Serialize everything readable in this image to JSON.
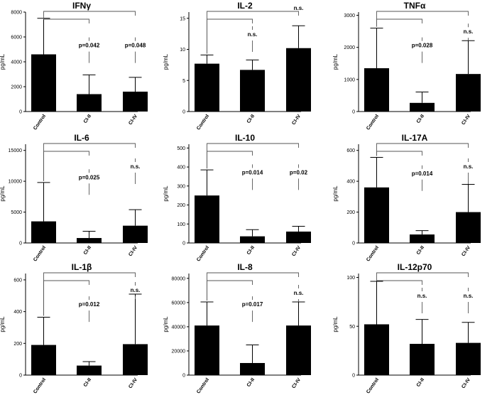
{
  "chart_data": [
    {
      "type": "bar",
      "title": "IFNγ",
      "ylabel": "pg/mL",
      "categories": [
        "Control",
        "CI-II",
        "CI-IV"
      ],
      "values": [
        4600,
        1400,
        1600
      ],
      "errors": [
        2900,
        1550,
        1150
      ],
      "ylim": [
        0,
        8000
      ],
      "yticks": [
        0,
        2000,
        4000,
        6000,
        8000
      ],
      "comparisons": [
        {
          "to": 1,
          "label": "p=0.042"
        },
        {
          "to": 2,
          "label": "p=0.048"
        }
      ]
    },
    {
      "type": "bar",
      "title": "IL-2",
      "ylabel": "pg/mL",
      "categories": [
        "Control",
        "CI-II",
        "CI-IV"
      ],
      "values": [
        7.7,
        6.7,
        10.2
      ],
      "errors": [
        1.4,
        1.6,
        3.6
      ],
      "ylim": [
        0,
        16
      ],
      "yticks": [
        0,
        5,
        10,
        15
      ],
      "comparisons": [
        {
          "to": 1,
          "label": "n.s."
        },
        {
          "to": 2,
          "label": "n.s."
        }
      ]
    },
    {
      "type": "bar",
      "title": "TNFα",
      "ylabel": "pg/mL",
      "categories": [
        "Control",
        "CI-II",
        "CI-IV"
      ],
      "values": [
        1350,
        270,
        1170
      ],
      "errors": [
        1250,
        340,
        1040
      ],
      "ylim": [
        0,
        3100
      ],
      "yticks": [
        0,
        1000,
        2000,
        3000
      ],
      "comparisons": [
        {
          "to": 1,
          "label": "p=0.028"
        },
        {
          "to": 2,
          "label": "n.s."
        }
      ]
    },
    {
      "type": "bar",
      "title": "IL-6",
      "ylabel": "pg/mL",
      "categories": [
        "Control",
        "CI-II",
        "CI-IV"
      ],
      "values": [
        3500,
        800,
        2800
      ],
      "errors": [
        6300,
        1100,
        2600
      ],
      "ylim": [
        0,
        16000
      ],
      "yticks": [
        0,
        5000,
        10000,
        15000
      ],
      "comparisons": [
        {
          "to": 1,
          "label": "p=0.025"
        },
        {
          "to": 2,
          "label": "n.s."
        }
      ]
    },
    {
      "type": "bar",
      "title": "IL-10",
      "ylabel": "pg/mL",
      "categories": [
        "Control",
        "CI-II",
        "CI-IV"
      ],
      "values": [
        250,
        35,
        60
      ],
      "errors": [
        135,
        35,
        28
      ],
      "ylim": [
        0,
        520
      ],
      "yticks": [
        0,
        100,
        200,
        300,
        400,
        500
      ],
      "comparisons": [
        {
          "to": 1,
          "label": "p=0.014"
        },
        {
          "to": 2,
          "label": "p=0.02"
        }
      ]
    },
    {
      "type": "bar",
      "title": "IL-17A",
      "ylabel": "pg/mL",
      "categories": [
        "Control",
        "CI-II",
        "CI-IV"
      ],
      "values": [
        360,
        55,
        200
      ],
      "errors": [
        195,
        25,
        180
      ],
      "ylim": [
        0,
        640
      ],
      "yticks": [
        0,
        200,
        400,
        600
      ],
      "comparisons": [
        {
          "to": 1,
          "label": "p=0.014"
        },
        {
          "to": 2,
          "label": "n.s."
        }
      ]
    },
    {
      "type": "bar",
      "title": "IL-1β",
      "ylabel": "pg/mL",
      "categories": [
        "Control",
        "CI-II",
        "CI-IV"
      ],
      "values": [
        190,
        60,
        195
      ],
      "errors": [
        175,
        25,
        315
      ],
      "ylim": [
        0,
        640
      ],
      "yticks": [
        0,
        200,
        400,
        600
      ],
      "comparisons": [
        {
          "to": 1,
          "label": "p=0.012"
        },
        {
          "to": 2,
          "label": "n.s."
        }
      ]
    },
    {
      "type": "bar",
      "title": "IL-8",
      "ylabel": "pg/mL",
      "categories": [
        "Control",
        "CI-II",
        "CI-IV"
      ],
      "values": [
        41000,
        10000,
        41000
      ],
      "errors": [
        19500,
        15000,
        19500
      ],
      "ylim": [
        0,
        84000
      ],
      "yticks": [
        0,
        20000,
        40000,
        60000,
        80000
      ],
      "comparisons": [
        {
          "to": 1,
          "label": "p=0.017"
        },
        {
          "to": 2,
          "label": "n.s."
        }
      ]
    },
    {
      "type": "bar",
      "title": "IL-12p70",
      "ylabel": "pg/mL",
      "categories": [
        "Control",
        "CI-II",
        "CI-IV"
      ],
      "values": [
        52,
        32,
        33
      ],
      "errors": [
        44,
        25,
        21
      ],
      "ylim": [
        0,
        104
      ],
      "yticks": [
        0,
        50,
        100
      ],
      "comparisons": [
        {
          "to": 1,
          "label": "n.s."
        },
        {
          "to": 2,
          "label": "n.s."
        }
      ]
    }
  ]
}
